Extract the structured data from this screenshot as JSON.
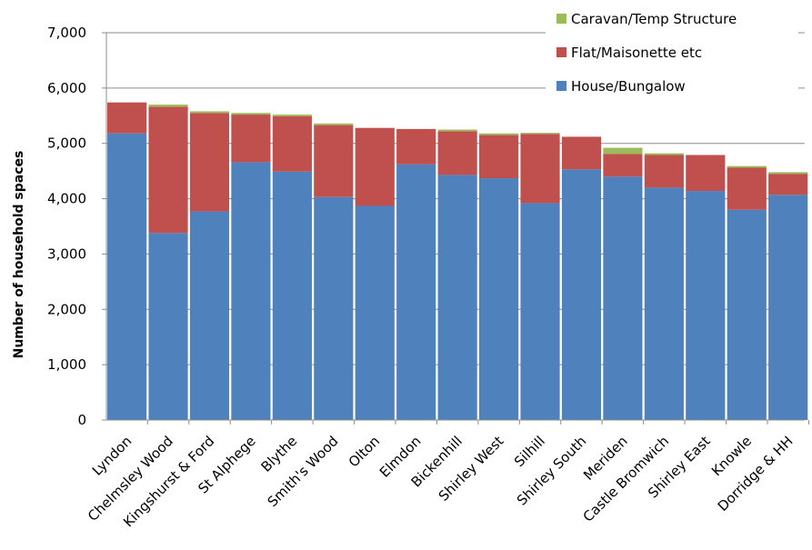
{
  "chart_data": {
    "type": "bar",
    "stacked": true,
    "title": "",
    "xlabel": "",
    "ylabel": "Number of household spaces",
    "ylim": [
      0,
      7000
    ],
    "yticks": [
      0,
      1000,
      2000,
      3000,
      4000,
      5000,
      6000,
      7000
    ],
    "ytick_labels": [
      "0",
      "1,000",
      "2,000",
      "3,000",
      "4,000",
      "5,000",
      "6,000",
      "7,000"
    ],
    "grid": true,
    "legend_position": "top-right",
    "categories": [
      "Lyndon",
      "Chelmsley Wood",
      "Kingshurst & Ford",
      "St Alphege",
      "Blythe",
      "Smith's Wood",
      "Olton",
      "Elmdon",
      "Bickenhill",
      "Shirley West",
      "Silhill",
      "Shirley South",
      "Meriden",
      "Castle Bromwich",
      "Shirley East",
      "Knowle",
      "Dorridge & HH"
    ],
    "series": [
      {
        "name": "House/Bungalow",
        "color": "#4f81bd",
        "values": [
          5180,
          3380,
          3770,
          4660,
          4490,
          4030,
          3870,
          4620,
          4430,
          4370,
          3920,
          4530,
          4400,
          4200,
          4140,
          3800,
          4070
        ]
      },
      {
        "name": "Flat/Maisonette etc",
        "color": "#c0504d",
        "values": [
          560,
          2280,
          1780,
          860,
          1000,
          1300,
          1410,
          640,
          790,
          780,
          1250,
          590,
          410,
          590,
          650,
          760,
          380
        ]
      },
      {
        "name": "Caravan/Temp Structure",
        "color": "#9bbb59",
        "values": [
          0,
          40,
          30,
          30,
          30,
          30,
          0,
          0,
          30,
          30,
          20,
          0,
          110,
          30,
          0,
          30,
          30
        ]
      }
    ]
  }
}
